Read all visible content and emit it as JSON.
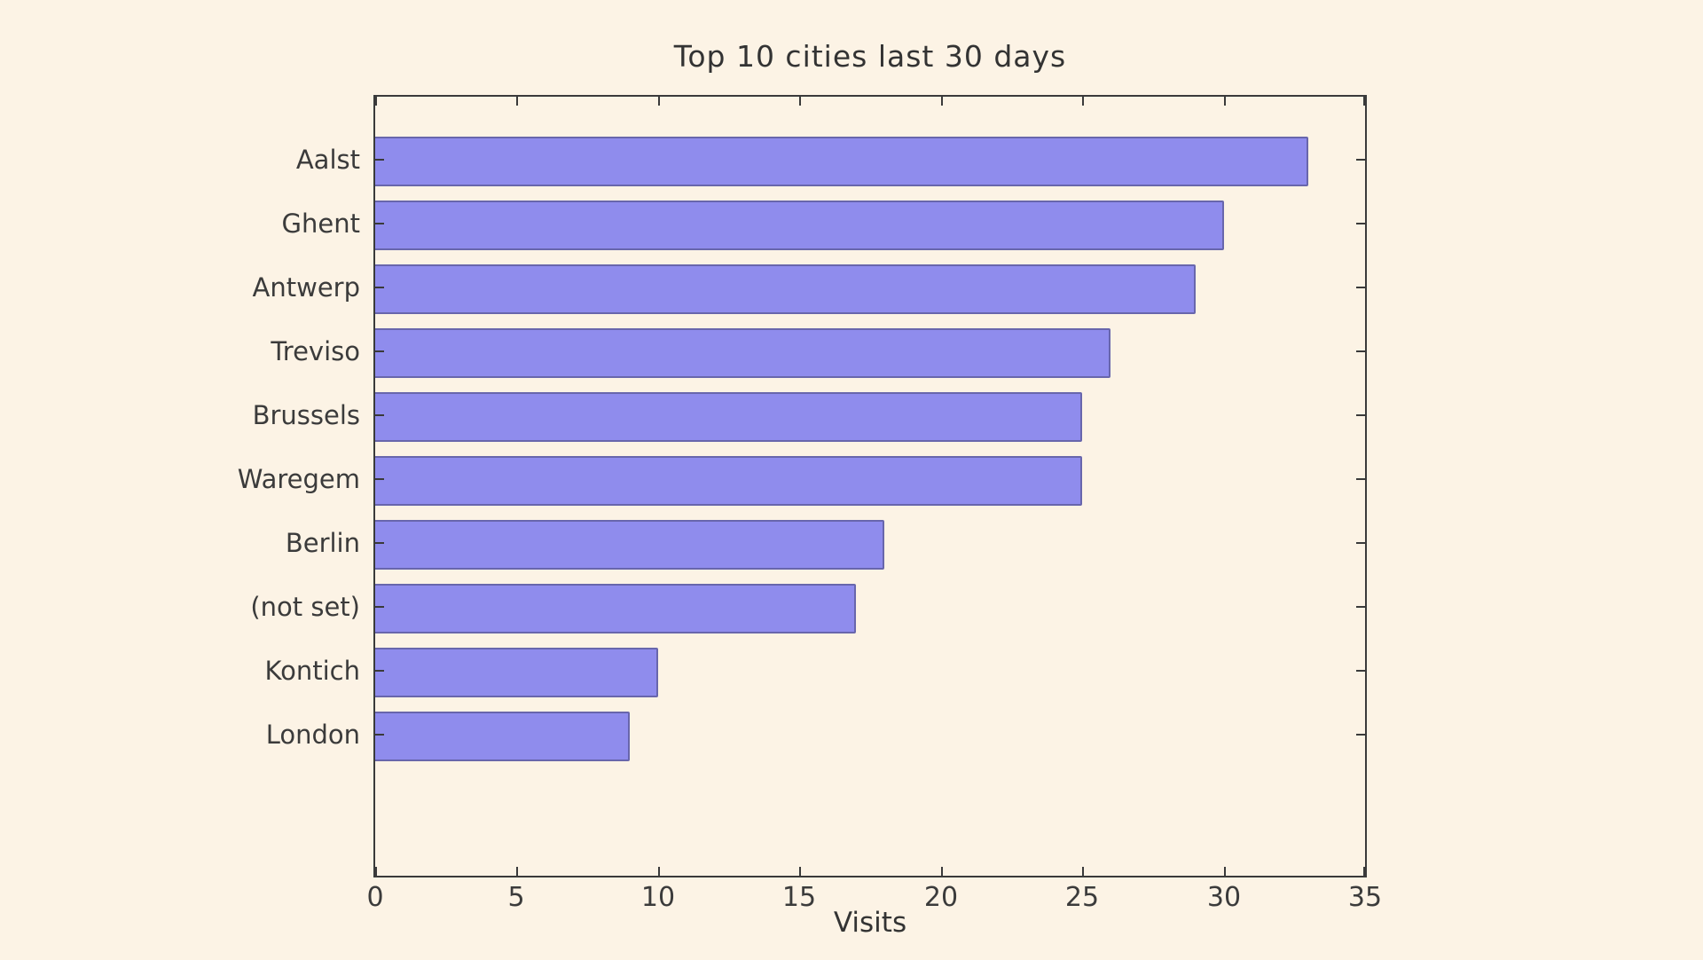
{
  "chart_data": {
    "type": "bar",
    "orientation": "horizontal",
    "title": "Top 10 cities last 30 days",
    "xlabel": "Visits",
    "ylabel": "",
    "categories": [
      "Aalst",
      "Ghent",
      "Antwerp",
      "Treviso",
      "Brussels",
      "Waregem",
      "Berlin",
      "(not set)",
      "Kontich",
      "London"
    ],
    "values": [
      33,
      30,
      29,
      26,
      25,
      25,
      18,
      17,
      10,
      9
    ],
    "xlim": [
      0,
      35
    ],
    "xticks": [
      0,
      5,
      10,
      15,
      20,
      25,
      30,
      35
    ],
    "grid": false,
    "legend": null,
    "colors": {
      "background": "#fcf3e5",
      "bar_fill": "#8f8ced",
      "bar_edge": "#3a3a5e",
      "spine": "#3a3a3a",
      "text": "#333333"
    }
  }
}
